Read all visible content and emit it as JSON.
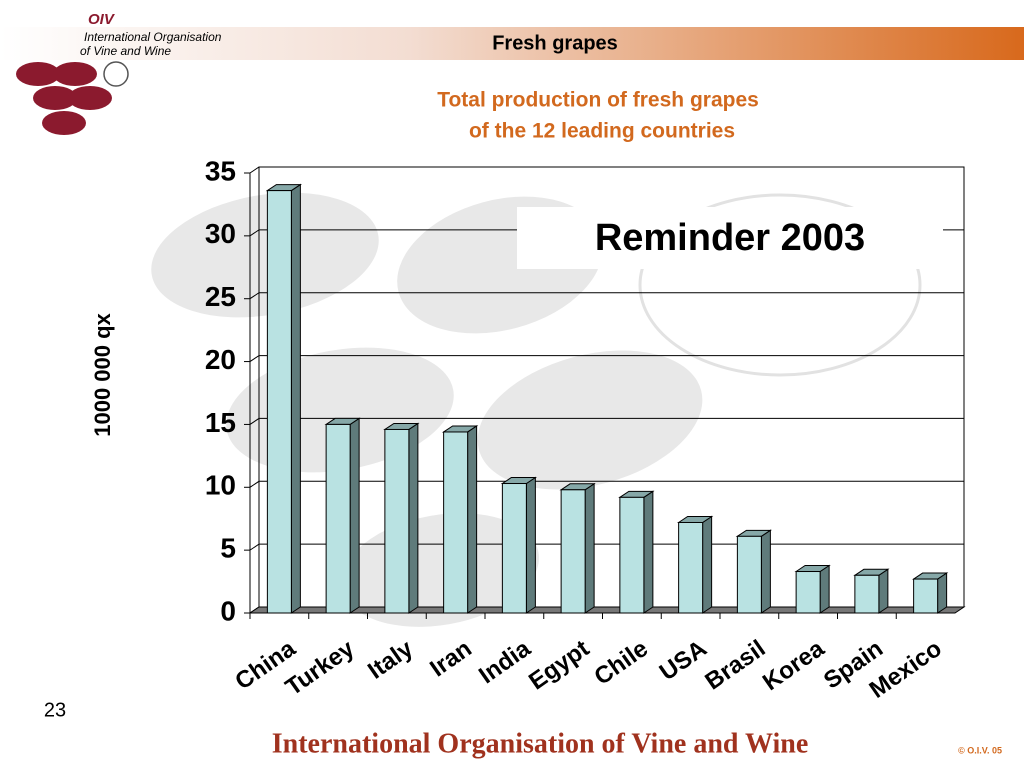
{
  "header": {
    "logo": "OIV",
    "org_line1": "International Organisation",
    "org_line2": "of  Vine  and  Wine",
    "section": "Fresh grapes"
  },
  "chart_data": {
    "type": "bar3d",
    "title": "Total production of fresh grapes",
    "subtitle": "of  the 12 leading countries",
    "y_label": "1000 000 qx",
    "annotation": "Reminder 2003",
    "categories": [
      "China",
      "Turkey",
      "Italy",
      "Iran",
      "India",
      "Egypt",
      "Chile",
      "USA",
      "Brasil",
      "Korea",
      "Spain",
      "Mexico"
    ],
    "values": [
      33.6,
      15.0,
      14.6,
      14.4,
      10.3,
      9.8,
      9.2,
      7.2,
      6.1,
      3.3,
      3.0,
      2.7
    ],
    "color": "#b9e2e2",
    "ylim": [
      0,
      35
    ],
    "yticks": [
      0,
      5,
      10,
      15,
      20,
      25,
      30,
      35
    ],
    "grid": true
  },
  "page_number": "23",
  "footer": {
    "organisation": "International Organisation of Vine and Wine",
    "copyright": "© O.I.V. 05"
  }
}
